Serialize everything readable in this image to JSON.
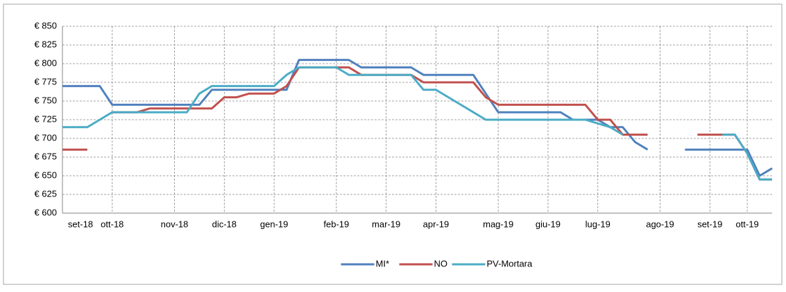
{
  "chart_data": {
    "type": "line",
    "categories": [
      "set-18",
      null,
      null,
      null,
      "ott-18",
      null,
      null,
      null,
      null,
      "nov-18",
      null,
      null,
      null,
      "dic-18",
      null,
      null,
      null,
      "gen-19",
      null,
      null,
      null,
      null,
      "feb-19",
      null,
      null,
      null,
      "mar-19",
      null,
      null,
      null,
      "apr-19",
      null,
      null,
      null,
      null,
      "mag-19",
      null,
      null,
      null,
      "giu-19",
      null,
      null,
      null,
      "lug-19",
      null,
      null,
      null,
      null,
      "ago-19",
      null,
      null,
      null,
      "set-19",
      null,
      null,
      "ott-19",
      null,
      null
    ],
    "series": [
      {
        "name": "MI*",
        "color": "#4f81bd",
        "values": [
          770,
          770,
          770,
          770,
          745,
          745,
          745,
          745,
          745,
          745,
          745,
          745,
          765,
          765,
          765,
          765,
          765,
          765,
          765,
          805,
          805,
          805,
          805,
          805,
          795,
          795,
          795,
          795,
          795,
          785,
          785,
          785,
          785,
          785,
          760,
          735,
          735,
          735,
          735,
          735,
          735,
          725,
          725,
          725,
          715,
          715,
          695,
          685,
          null,
          null,
          685,
          685,
          685,
          685,
          685,
          685,
          650,
          660
        ]
      },
      {
        "name": "NO",
        "color": "#c0504d",
        "values": [
          685,
          685,
          685,
          null,
          735,
          735,
          735,
          740,
          740,
          740,
          740,
          740,
          740,
          755,
          755,
          760,
          760,
          760,
          770,
          795,
          795,
          795,
          795,
          795,
          785,
          785,
          785,
          785,
          785,
          775,
          775,
          775,
          775,
          775,
          755,
          745,
          745,
          745,
          745,
          745,
          745,
          745,
          745,
          725,
          725,
          705,
          705,
          705,
          null,
          null,
          null,
          705,
          705,
          705,
          705,
          680,
          645,
          645
        ]
      },
      {
        "name": "PV-Mortara",
        "color": "#4bacc6",
        "values": [
          715,
          715,
          715,
          725,
          735,
          735,
          735,
          735,
          735,
          735,
          735,
          760,
          770,
          770,
          770,
          770,
          770,
          770,
          785,
          795,
          795,
          795,
          795,
          785,
          785,
          785,
          785,
          785,
          785,
          765,
          765,
          755,
          745,
          735,
          725,
          725,
          725,
          725,
          725,
          725,
          725,
          725,
          725,
          720,
          715,
          705,
          null,
          null,
          null,
          null,
          null,
          null,
          null,
          705,
          705,
          680,
          645,
          645
        ]
      }
    ],
    "ylim": [
      600,
      850
    ],
    "yticks": [
      {
        "value": 600,
        "label": "€ 600"
      },
      {
        "value": 625,
        "label": "€ 625"
      },
      {
        "value": 650,
        "label": "€ 650"
      },
      {
        "value": 675,
        "label": "€ 675"
      },
      {
        "value": 700,
        "label": "€ 700"
      },
      {
        "value": 725,
        "label": "€ 725"
      },
      {
        "value": 750,
        "label": "€ 750"
      },
      {
        "value": 775,
        "label": "€ 775"
      },
      {
        "value": 800,
        "label": "€ 800"
      },
      {
        "value": 825,
        "label": "€ 825"
      },
      {
        "value": 850,
        "label": "€ 850"
      }
    ],
    "grid": true,
    "legend": "bottom"
  }
}
